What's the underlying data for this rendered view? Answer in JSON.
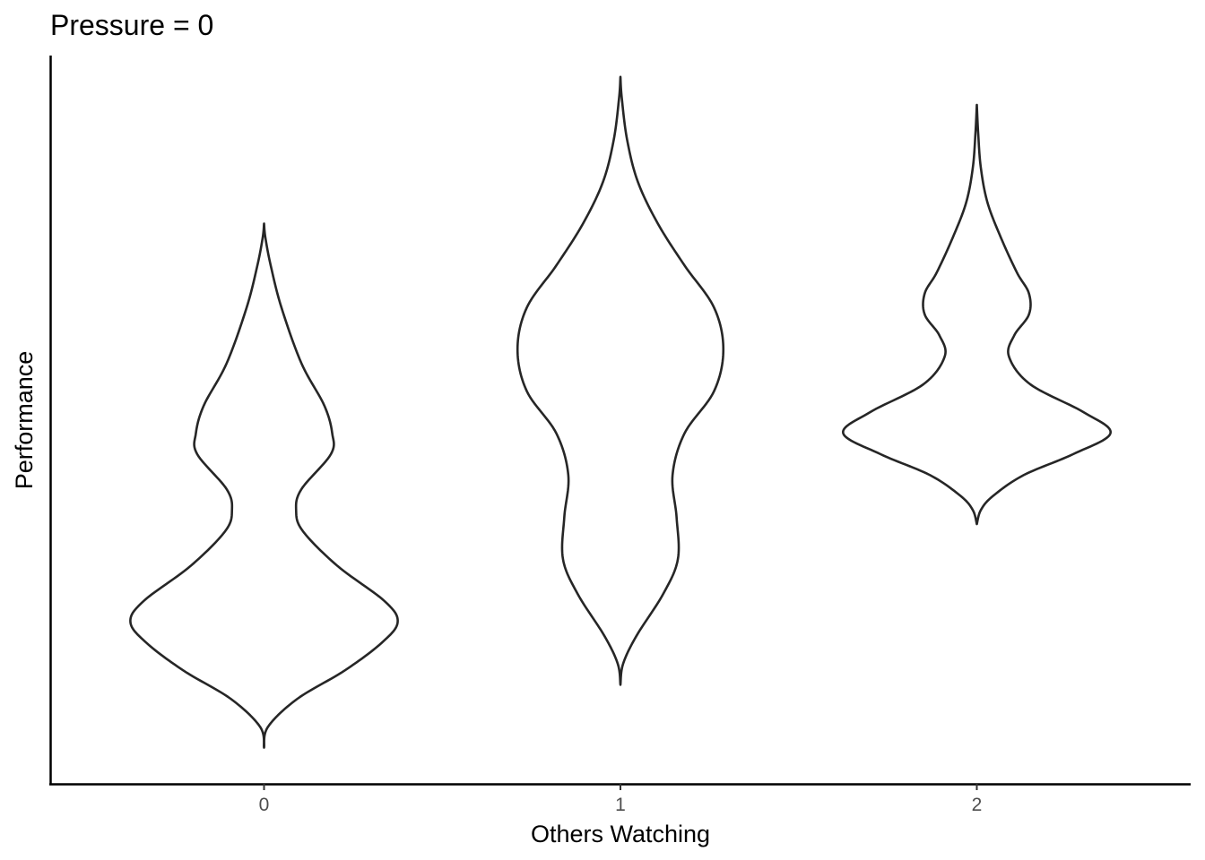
{
  "chart_data": {
    "type": "violin",
    "title": "Pressure = 0",
    "xlabel": "Others Watching",
    "ylabel": "Performance",
    "categories": [
      "0",
      "1",
      "2"
    ],
    "y_axis_ticks_shown": false,
    "ylim": [
      0,
      100
    ],
    "violins": [
      {
        "category": "0",
        "min": 3,
        "max": 78,
        "profile": [
          {
            "y": 3,
            "w": 0
          },
          {
            "y": 6,
            "w": 0.03
          },
          {
            "y": 10,
            "w": 0.25
          },
          {
            "y": 14,
            "w": 0.6
          },
          {
            "y": 18,
            "w": 0.88
          },
          {
            "y": 21,
            "w": 1.0
          },
          {
            "y": 24,
            "w": 0.9
          },
          {
            "y": 29,
            "w": 0.55
          },
          {
            "y": 34,
            "w": 0.29
          },
          {
            "y": 37,
            "w": 0.24
          },
          {
            "y": 40,
            "w": 0.28
          },
          {
            "y": 45,
            "w": 0.5
          },
          {
            "y": 48,
            "w": 0.51
          },
          {
            "y": 52,
            "w": 0.45
          },
          {
            "y": 58,
            "w": 0.28
          },
          {
            "y": 66,
            "w": 0.13
          },
          {
            "y": 72,
            "w": 0.05
          },
          {
            "y": 76,
            "w": 0.01
          },
          {
            "y": 78,
            "w": 0
          }
        ]
      },
      {
        "category": "1",
        "min": 12,
        "max": 99,
        "profile": [
          {
            "y": 12,
            "w": 0
          },
          {
            "y": 15,
            "w": 0.02
          },
          {
            "y": 19,
            "w": 0.12
          },
          {
            "y": 25,
            "w": 0.32
          },
          {
            "y": 30,
            "w": 0.43
          },
          {
            "y": 36,
            "w": 0.42
          },
          {
            "y": 42,
            "w": 0.39
          },
          {
            "y": 48,
            "w": 0.48
          },
          {
            "y": 54,
            "w": 0.7
          },
          {
            "y": 60,
            "w": 0.77
          },
          {
            "y": 66,
            "w": 0.7
          },
          {
            "y": 72,
            "w": 0.48
          },
          {
            "y": 78,
            "w": 0.28
          },
          {
            "y": 84,
            "w": 0.13
          },
          {
            "y": 90,
            "w": 0.05
          },
          {
            "y": 96,
            "w": 0.01
          },
          {
            "y": 99,
            "w": 0
          }
        ]
      },
      {
        "category": "2",
        "min": 35,
        "max": 95,
        "profile": [
          {
            "y": 35,
            "w": 0
          },
          {
            "y": 37,
            "w": 0.03
          },
          {
            "y": 39,
            "w": 0.12
          },
          {
            "y": 42,
            "w": 0.35
          },
          {
            "y": 45,
            "w": 0.72
          },
          {
            "y": 48,
            "w": 1.0
          },
          {
            "y": 51,
            "w": 0.8
          },
          {
            "y": 55,
            "w": 0.4
          },
          {
            "y": 59,
            "w": 0.24
          },
          {
            "y": 62,
            "w": 0.28
          },
          {
            "y": 65,
            "w": 0.39
          },
          {
            "y": 68,
            "w": 0.39
          },
          {
            "y": 71,
            "w": 0.3
          },
          {
            "y": 76,
            "w": 0.18
          },
          {
            "y": 81,
            "w": 0.08
          },
          {
            "y": 86,
            "w": 0.03
          },
          {
            "y": 91,
            "w": 0.01
          },
          {
            "y": 95,
            "w": 0
          }
        ]
      }
    ]
  }
}
